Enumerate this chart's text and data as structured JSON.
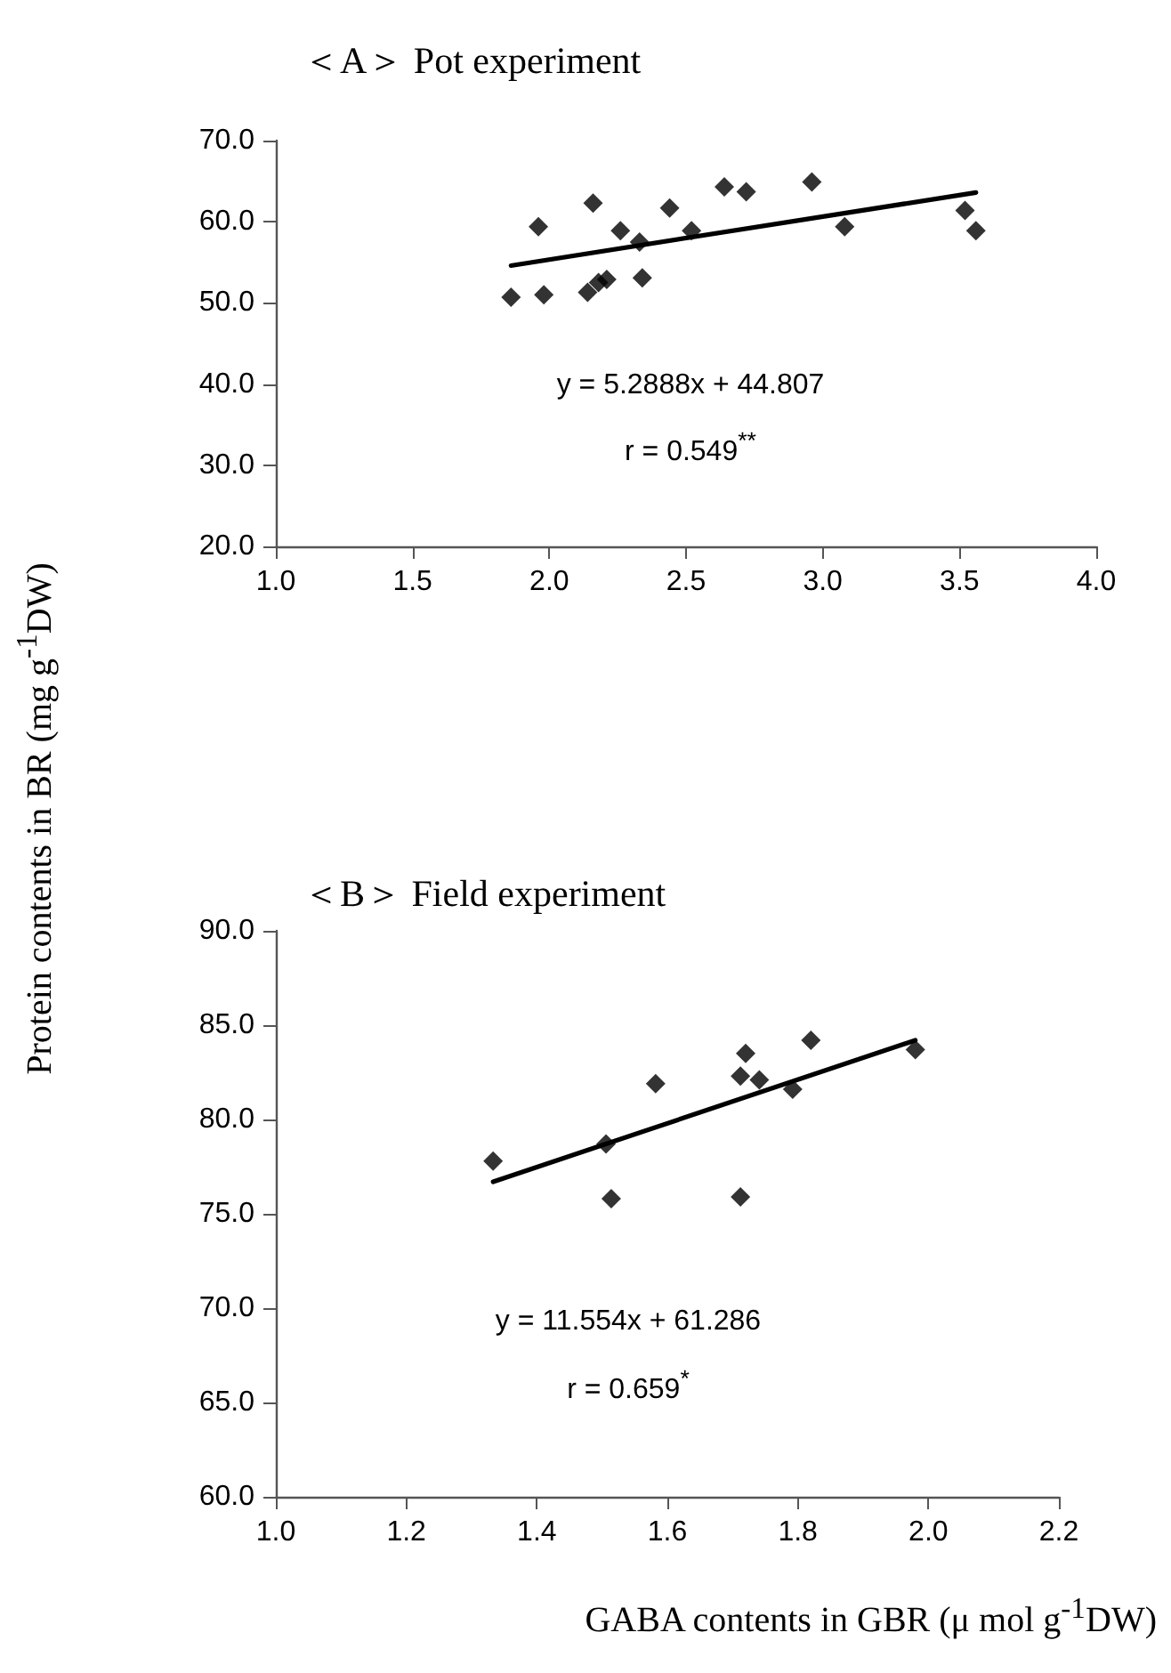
{
  "chart_data": [
    {
      "type": "scatter",
      "title": "＜A＞ Pot experiment",
      "annotations": [
        "y = 5.2888x + 44.807",
        "r = 0.549$^{**}$"
      ],
      "xlim": [
        1,
        4
      ],
      "xticks": [
        {
          "value": 1,
          "label": "1.0"
        },
        {
          "value": 1.5,
          "label": "1.5"
        },
        {
          "value": 2,
          "label": "2.0"
        },
        {
          "value": 2.5,
          "label": "2.5"
        },
        {
          "value": 3,
          "label": "3.0"
        },
        {
          "value": 3.5,
          "label": "3.5"
        },
        {
          "value": 4,
          "label": "4.0"
        }
      ],
      "ylim": [
        20,
        70
      ],
      "yticks": [
        {
          "value": 20,
          "label": "20.0"
        },
        {
          "value": 30,
          "label": "30.0"
        },
        {
          "value": 40,
          "label": "40.0"
        },
        {
          "value": 50,
          "label": "50.0"
        },
        {
          "value": 60,
          "label": "60.0"
        },
        {
          "value": 70,
          "label": "70.0"
        }
      ],
      "grid": false,
      "marker": "diamond",
      "series": [
        {
          "color": "#000000",
          "x": [
            1.86,
            1.96,
            1.98,
            2.14,
            2.16,
            2.18,
            2.21,
            2.26,
            2.33,
            2.34,
            2.44,
            2.52,
            2.64,
            2.72,
            2.96,
            3.08,
            3.52,
            3.56
          ],
          "values": [
            50.7,
            59.4,
            51.0,
            51.3,
            62.3,
            52.5,
            52.9,
            58.9,
            57.5,
            53.1,
            61.7,
            58.9,
            64.3,
            63.7,
            64.9,
            59.4,
            61.4,
            58.9
          ]
        },
        {
          "type": "line",
          "color": "#000000",
          "marker": "none",
          "line_style": "solid",
          "x": [
            1.86,
            3.56
          ],
          "values": [
            54.6,
            63.6
          ]
        }
      ]
    },
    {
      "type": "scatter",
      "title": "＜B＞ Field experiment",
      "xlabel": "GABA contents in GBR (μ mol g$^{-1}$DW)",
      "ylabel": "Protein contents in BR (mg g$^{-1}$DW)",
      "annotations": [
        "y = 11.554x + 61.286",
        "r = 0.659$^{*}$"
      ],
      "xlim": [
        1,
        2.2
      ],
      "xticks": [
        {
          "value": 1,
          "label": "1.0"
        },
        {
          "value": 1.2,
          "label": "1.2"
        },
        {
          "value": 1.4,
          "label": "1.4"
        },
        {
          "value": 1.6,
          "label": "1.6"
        },
        {
          "value": 1.8,
          "label": "1.8"
        },
        {
          "value": 2,
          "label": "2.0"
        },
        {
          "value": 2.2,
          "label": "2.2"
        }
      ],
      "ylim": [
        60,
        90
      ],
      "yticks": [
        {
          "value": 60,
          "label": "60.0"
        },
        {
          "value": 65,
          "label": "65.0"
        },
        {
          "value": 70,
          "label": "70.0"
        },
        {
          "value": 75,
          "label": "75.0"
        },
        {
          "value": 80,
          "label": "80.0"
        },
        {
          "value": 85,
          "label": "85.0"
        },
        {
          "value": 90,
          "label": "90.0"
        }
      ],
      "grid": false,
      "marker": "diamond",
      "series": [
        {
          "color": "#000000",
          "x": [
            1.333,
            1.506,
            1.514,
            1.582,
            1.712,
            1.712,
            1.72,
            1.741,
            1.792,
            1.82,
            1.98
          ],
          "values": [
            77.8,
            78.7,
            75.8,
            81.9,
            82.3,
            75.9,
            83.5,
            82.1,
            81.6,
            84.2,
            83.7
          ]
        },
        {
          "type": "line",
          "color": "#000000",
          "marker": "none",
          "line_style": "solid",
          "x": [
            1.333,
            1.98
          ],
          "values": [
            76.7,
            84.2
          ]
        }
      ]
    }
  ]
}
